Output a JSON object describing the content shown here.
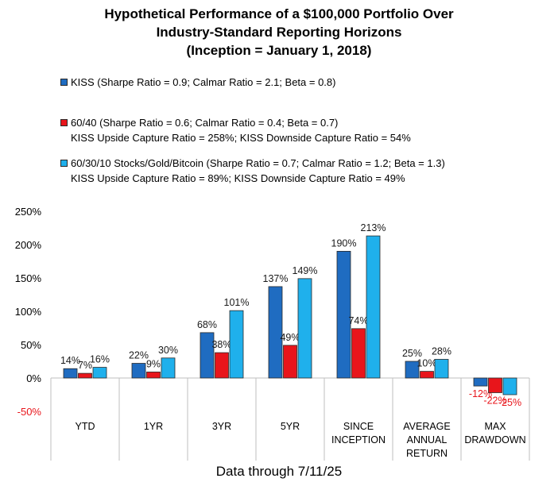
{
  "chart_data": {
    "type": "bar",
    "title_lines": [
      "Hypothetical Performance of a $100,000 Portfolio Over",
      "Industry-Standard Reporting Horizons",
      "(Inception = January 1, 2018)"
    ],
    "categories": [
      [
        "YTD"
      ],
      [
        "1YR"
      ],
      [
        "3YR"
      ],
      [
        "5YR"
      ],
      [
        "SINCE",
        "INCEPTION"
      ],
      [
        "AVERAGE",
        "ANNUAL",
        "RETURN"
      ],
      [
        "MAX",
        "DRAWDOWN"
      ]
    ],
    "series": [
      {
        "name": "KISS",
        "legend": "KISS (Sharpe Ratio = 0.9; Calmar Ratio = 2.1; Beta = 0.8)",
        "note": "",
        "color": "#1f6cc1",
        "values": [
          14,
          22,
          68,
          137,
          190,
          25,
          -12
        ],
        "labels": [
          "14%",
          "22%",
          "68%",
          "137%",
          "190%",
          "25%",
          "-12%"
        ]
      },
      {
        "name": "60/40",
        "legend": "60/40 (Sharpe Ratio = 0.6; Calmar Ratio = 0.4; Beta = 0.7)",
        "note": "KISS Upside Capture Ratio = 258%; KISS Downside Capture Ratio = 54%",
        "color": "#e8151b",
        "values": [
          7,
          9,
          38,
          49,
          74,
          10,
          -22
        ],
        "labels": [
          "7%",
          "9%",
          "38%",
          "49%",
          "74%",
          "10%",
          "-22%"
        ]
      },
      {
        "name": "60/30/10 Stocks/Gold/Bitcoin",
        "legend": "60/30/10 Stocks/Gold/Bitcoin (Sharpe Ratio = 0.7; Calmar Ratio = 1.2; Beta = 1.3)",
        "note": "KISS Upside Capture Ratio = 89%; KISS Downside Capture Ratio = 49%",
        "color": "#1fb0ec",
        "values": [
          16,
          30,
          101,
          149,
          213,
          28,
          -25
        ],
        "labels": [
          "16%",
          "30%",
          "101%",
          "149%",
          "213%",
          "28%",
          "-25%"
        ]
      }
    ],
    "yticks": [
      250,
      200,
      150,
      100,
      50,
      0,
      -50
    ],
    "ytick_labels": [
      "250%",
      "200%",
      "150%",
      "100%",
      "50%",
      "0%",
      "-50%"
    ],
    "ylim": [
      -50,
      250
    ],
    "negative_label_color": "#e8151b",
    "grid": false,
    "legend_position": "top-left"
  },
  "footer": "Data through 7/11/25"
}
